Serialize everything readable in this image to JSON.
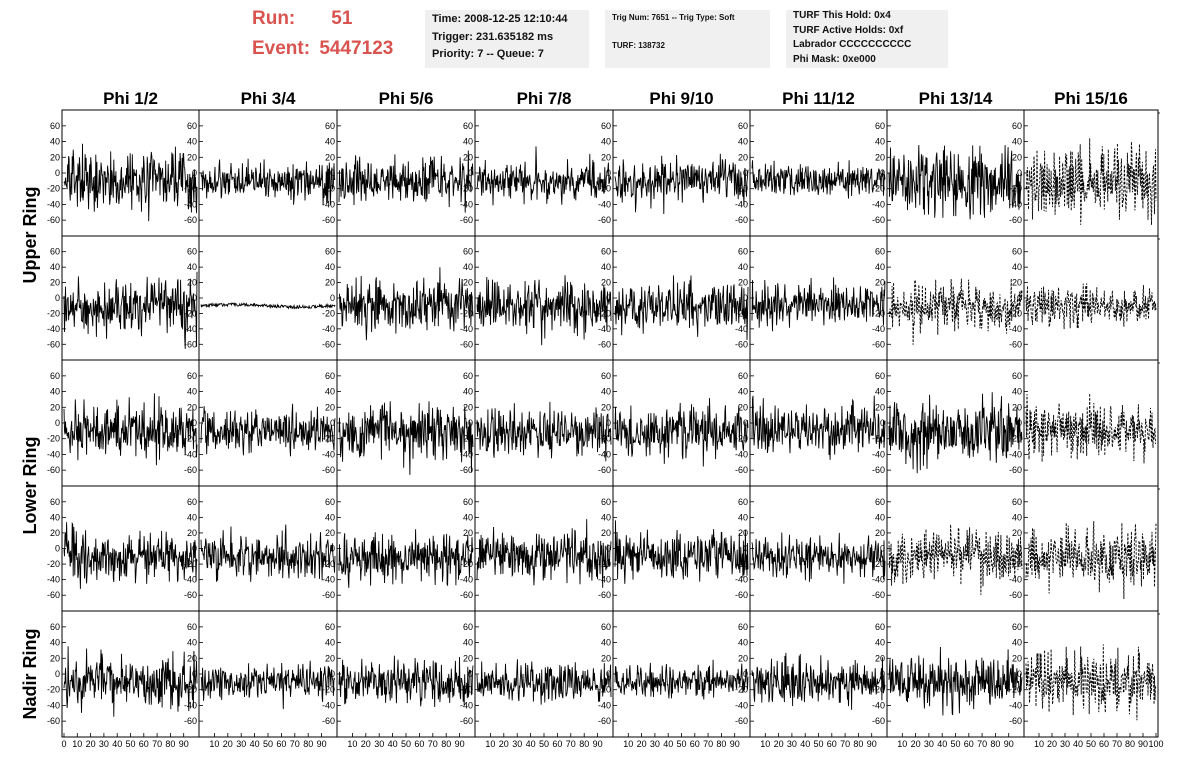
{
  "header": {
    "run_label": "Run:",
    "run_value": "51",
    "event_label": "Event:",
    "event_value": "5447123"
  },
  "info_time": {
    "time": "Time: 2008-12-25 12:10:44",
    "trigger": "Trigger: 231.635182 ms",
    "priority": "Priority: 7 -- Queue: 7"
  },
  "info_trig": {
    "trig": "Trig Num: 7651 -- Trig Type: Soft",
    "turf": "TURF: 138732"
  },
  "info_turf": {
    "hold": "TURF This Hold: 0x4",
    "active": "TURF Active Holds: 0xf",
    "labrador": "Labrador CCCCCCCCCC",
    "phimask": "Phi Mask: 0xe000"
  },
  "colors": {
    "title": "#d9534f",
    "panel_bg": "#f0f0f0",
    "trace": "#000000"
  },
  "chart_data": {
    "type": "line",
    "columns": [
      "Phi 1/2",
      "Phi 3/4",
      "Phi 5/6",
      "Phi 7/8",
      "Phi 9/10",
      "Phi 11/12",
      "Phi 13/14",
      "Phi 15/16"
    ],
    "rows": [
      "Upper Ring",
      "Upper Ring",
      "Lower Ring",
      "Lower Ring",
      "Nadir Ring"
    ],
    "row_labels": [
      "Upper Ring",
      "Lower Ring",
      "Nadir Ring"
    ],
    "x_ticks": [
      "0",
      "10",
      "20",
      "30",
      "40",
      "50",
      "60",
      "70",
      "80",
      "90",
      "100"
    ],
    "y_ticks": [
      "60",
      "40",
      "20",
      "0",
      "-20",
      "-40",
      "-60"
    ],
    "xlim": [
      0,
      100
    ],
    "ylim": [
      -70,
      70
    ],
    "samples_per_trace": 260,
    "note_styles": {
      "dashed_panels": [
        [
          0,
          7
        ],
        [
          1,
          6
        ],
        [
          1,
          7
        ],
        [
          2,
          7
        ],
        [
          3,
          6
        ],
        [
          3,
          7
        ],
        [
          4,
          7
        ]
      ],
      "flat_panels": [
        [
          1,
          1
        ]
      ]
    },
    "series": [
      {
        "row": 0,
        "col": 0,
        "offset": -10,
        "amplitude": 24
      },
      {
        "row": 0,
        "col": 1,
        "offset": -10,
        "amplitude": 16
      },
      {
        "row": 0,
        "col": 2,
        "offset": -10,
        "amplitude": 20
      },
      {
        "row": 0,
        "col": 3,
        "offset": -10,
        "amplitude": 16
      },
      {
        "row": 0,
        "col": 4,
        "offset": -8,
        "amplitude": 18
      },
      {
        "row": 0,
        "col": 5,
        "offset": -8,
        "amplitude": 14
      },
      {
        "row": 0,
        "col": 6,
        "offset": -10,
        "amplitude": 28
      },
      {
        "row": 0,
        "col": 7,
        "offset": -10,
        "amplitude": 30
      },
      {
        "row": 1,
        "col": 0,
        "offset": -10,
        "amplitude": 24
      },
      {
        "row": 1,
        "col": 1,
        "offset": -10,
        "amplitude": 2
      },
      {
        "row": 1,
        "col": 2,
        "offset": -10,
        "amplitude": 22
      },
      {
        "row": 1,
        "col": 3,
        "offset": -10,
        "amplitude": 22
      },
      {
        "row": 1,
        "col": 4,
        "offset": -10,
        "amplitude": 22
      },
      {
        "row": 1,
        "col": 5,
        "offset": -8,
        "amplitude": 18
      },
      {
        "row": 1,
        "col": 6,
        "offset": -10,
        "amplitude": 20
      },
      {
        "row": 1,
        "col": 7,
        "offset": -10,
        "amplitude": 18
      },
      {
        "row": 2,
        "col": 0,
        "offset": -10,
        "amplitude": 24
      },
      {
        "row": 2,
        "col": 1,
        "offset": -10,
        "amplitude": 18
      },
      {
        "row": 2,
        "col": 2,
        "offset": -10,
        "amplitude": 24
      },
      {
        "row": 2,
        "col": 3,
        "offset": -10,
        "amplitude": 20
      },
      {
        "row": 2,
        "col": 4,
        "offset": -10,
        "amplitude": 22
      },
      {
        "row": 2,
        "col": 5,
        "offset": -8,
        "amplitude": 22
      },
      {
        "row": 2,
        "col": 6,
        "offset": -10,
        "amplitude": 26
      },
      {
        "row": 2,
        "col": 7,
        "offset": -10,
        "amplitude": 24
      },
      {
        "row": 3,
        "col": 0,
        "offset": -10,
        "amplitude": 22
      },
      {
        "row": 3,
        "col": 1,
        "offset": -10,
        "amplitude": 18
      },
      {
        "row": 3,
        "col": 2,
        "offset": -10,
        "amplitude": 22
      },
      {
        "row": 3,
        "col": 3,
        "offset": -10,
        "amplitude": 20
      },
      {
        "row": 3,
        "col": 4,
        "offset": -10,
        "amplitude": 20
      },
      {
        "row": 3,
        "col": 5,
        "offset": -10,
        "amplitude": 18
      },
      {
        "row": 3,
        "col": 6,
        "offset": -10,
        "amplitude": 22
      },
      {
        "row": 3,
        "col": 7,
        "offset": -10,
        "amplitude": 24
      },
      {
        "row": 4,
        "col": 0,
        "offset": -10,
        "amplitude": 22
      },
      {
        "row": 4,
        "col": 1,
        "offset": -10,
        "amplitude": 14
      },
      {
        "row": 4,
        "col": 2,
        "offset": -10,
        "amplitude": 18
      },
      {
        "row": 4,
        "col": 3,
        "offset": -10,
        "amplitude": 16
      },
      {
        "row": 4,
        "col": 4,
        "offset": -10,
        "amplitude": 14
      },
      {
        "row": 4,
        "col": 5,
        "offset": -10,
        "amplitude": 20
      },
      {
        "row": 4,
        "col": 6,
        "offset": -10,
        "amplitude": 22
      },
      {
        "row": 4,
        "col": 7,
        "offset": -10,
        "amplitude": 26
      }
    ]
  }
}
